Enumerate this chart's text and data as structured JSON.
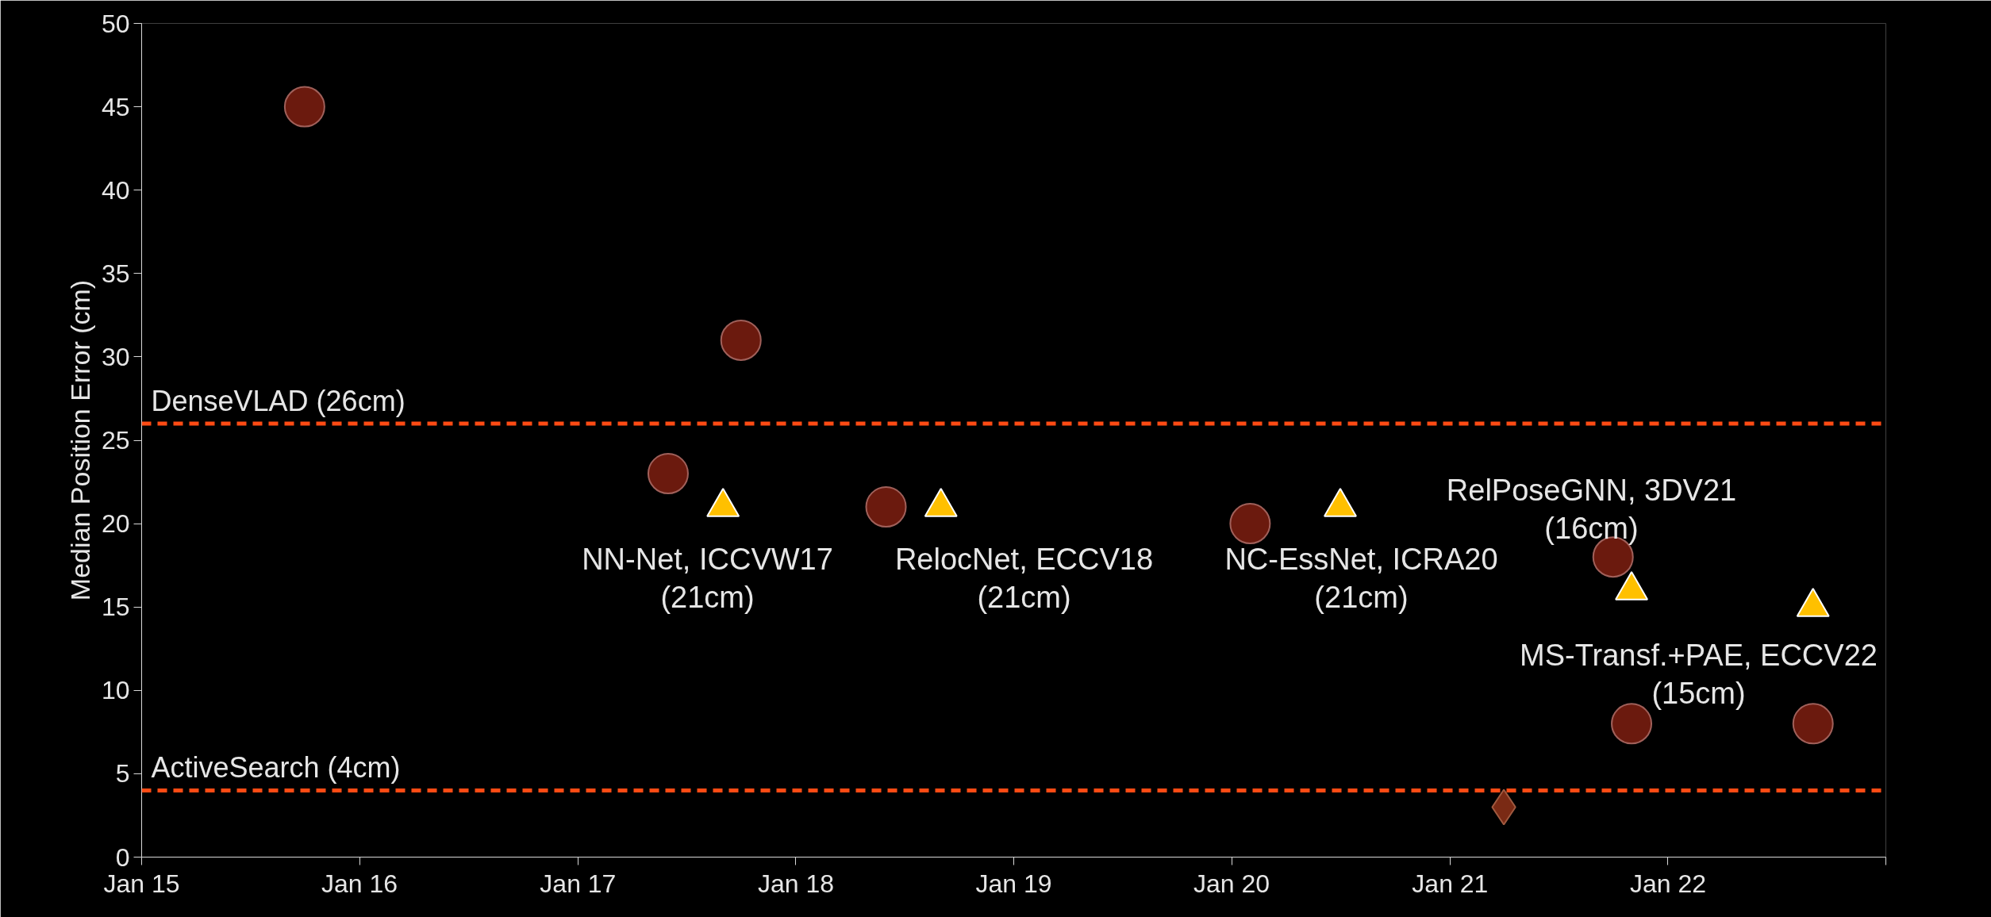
{
  "chart_data": {
    "type": "scatter",
    "ylabel": "Median Position Error (cm)",
    "xlim": [
      "2015-01",
      "2023-01"
    ],
    "ylim": [
      0,
      50
    ],
    "xticks": [
      {
        "value": "2015-01",
        "label": "Jan 15"
      },
      {
        "value": "2016-01",
        "label": "Jan 16"
      },
      {
        "value": "2017-01",
        "label": "Jan 17"
      },
      {
        "value": "2018-01",
        "label": "Jan 18"
      },
      {
        "value": "2019-01",
        "label": "Jan 19"
      },
      {
        "value": "2020-01",
        "label": "Jan 20"
      },
      {
        "value": "2021-01",
        "label": "Jan 21"
      },
      {
        "value": "2022-01",
        "label": "Jan 22"
      },
      {
        "value": "2023-01",
        "label": null
      }
    ],
    "yticks": [
      0,
      5,
      10,
      15,
      20,
      25,
      30,
      35,
      40,
      45,
      50
    ],
    "grid": false,
    "series": [
      {
        "marker": "circle",
        "color": "#6b1a0e",
        "x": [
          "2015-10",
          "2017-10",
          "2017-06",
          "2018-06",
          "2020-02",
          "2021-10",
          "2021-11",
          "2022-09"
        ],
        "values": [
          45,
          31,
          23,
          21,
          20,
          18,
          8,
          8
        ]
      },
      {
        "marker": "triangle",
        "color": "#ffc000",
        "x": [
          "2017-09",
          "2018-09",
          "2020-07",
          "2021-11",
          "2022-09"
        ],
        "values": [
          21,
          21,
          21,
          16,
          15
        ]
      },
      {
        "marker": "diamond",
        "color": "#7a2a14",
        "x": [
          "2021-04"
        ],
        "values": [
          3
        ]
      }
    ],
    "ref_lines": [
      {
        "axis": "y",
        "value": 26,
        "label": "DenseVLAD (26cm)",
        "color": "#ff4b14",
        "line_style": "dashed"
      },
      {
        "axis": "y",
        "value": 4,
        "label": "ActiveSearch (4cm)",
        "color": "#ff4b14",
        "line_style": "dashed"
      }
    ],
    "annotations": [
      "NN-Net, ICCVW17\n(21cm)",
      "RelocNet, ECCV18\n(21cm)",
      "NC-EssNet, ICRA20\n(21cm)",
      "RelPoseGNN, 3DV21\n(16cm)",
      "MS-Transf.+PAE, ECCV22\n(15cm)"
    ]
  }
}
